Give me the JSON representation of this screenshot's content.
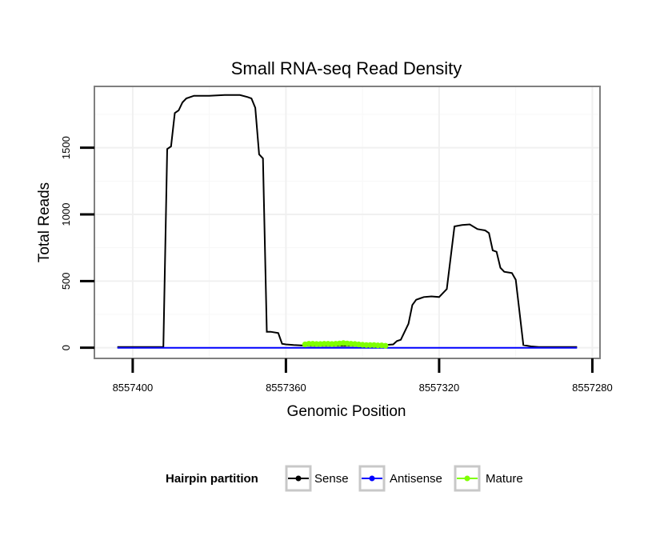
{
  "chart_data": {
    "type": "line",
    "title": "Small RNA-seq Read Density",
    "xlabel": "Genomic Position",
    "ylabel": "Total Reads",
    "xlim": [
      8557410,
      8557278
    ],
    "ylim": [
      -80,
      1960
    ],
    "x_reversed": true,
    "grid": true,
    "x_ticks": [
      8557400,
      8557360,
      8557320,
      8557280
    ],
    "x_tick_labels": [
      "8557400",
      "8557360",
      "8557320",
      "8557280"
    ],
    "y_ticks": [
      0,
      500,
      1000,
      1500
    ],
    "y_tick_labels": [
      "0",
      "500",
      "1000",
      "1500"
    ],
    "legend": {
      "title": "Hairpin partition",
      "position": "bottom",
      "entries": [
        "Sense",
        "Antisense",
        "Mature"
      ]
    },
    "colors": {
      "Sense": "#000000",
      "Antisense": "#0000ff",
      "Mature": "#7fff00"
    },
    "series": [
      {
        "name": "Sense",
        "x": [
          8557404,
          8557392,
          8557391,
          8557390,
          8557389,
          8557388,
          8557387,
          8557386,
          8557384,
          8557380,
          8557376,
          8557372,
          8557370,
          8557369,
          8557368,
          8557367,
          8557366,
          8557365,
          8557364,
          8557362,
          8557361,
          8557360,
          8557358,
          8557356,
          8557354,
          8557350,
          8557346,
          8557342,
          8557338,
          8557334,
          8557332,
          8557331,
          8557330,
          8557329,
          8557328,
          8557327,
          8557326,
          8557325,
          8557324,
          8557322,
          8557320,
          8557318,
          8557316,
          8557314,
          8557312,
          8557310,
          8557309,
          8557308,
          8557307,
          8557306,
          8557305,
          8557304,
          8557303,
          8557302,
          8557301,
          8557300,
          8557298,
          8557296,
          8557294,
          8557290,
          8557285,
          8557284
        ],
        "values": [
          5,
          5,
          1490,
          1510,
          1760,
          1780,
          1840,
          1870,
          1890,
          1890,
          1895,
          1895,
          1880,
          1870,
          1800,
          1450,
          1420,
          120,
          120,
          110,
          30,
          25,
          20,
          18,
          15,
          15,
          15,
          15,
          15,
          20,
          25,
          50,
          60,
          120,
          180,
          320,
          360,
          370,
          380,
          385,
          380,
          440,
          910,
          920,
          925,
          890,
          885,
          880,
          860,
          730,
          720,
          600,
          570,
          565,
          560,
          510,
          20,
          10,
          5,
          5,
          5,
          5
        ]
      },
      {
        "name": "Antisense",
        "x": [
          8557404,
          8557380,
          8557350,
          8557320,
          8557290,
          8557284
        ],
        "values": [
          0,
          0,
          0,
          0,
          0,
          0
        ]
      },
      {
        "name": "Mature",
        "x": [
          8557355,
          8557354,
          8557353,
          8557352,
          8557351,
          8557350,
          8557349,
          8557348,
          8557347,
          8557346,
          8557345,
          8557344,
          8557343,
          8557342,
          8557341,
          8557340,
          8557339,
          8557338,
          8557337,
          8557336,
          8557335,
          8557334
        ],
        "values": [
          25,
          30,
          30,
          28,
          28,
          30,
          30,
          28,
          30,
          32,
          35,
          32,
          30,
          28,
          25,
          22,
          20,
          20,
          20,
          18,
          18,
          15
        ]
      }
    ]
  }
}
